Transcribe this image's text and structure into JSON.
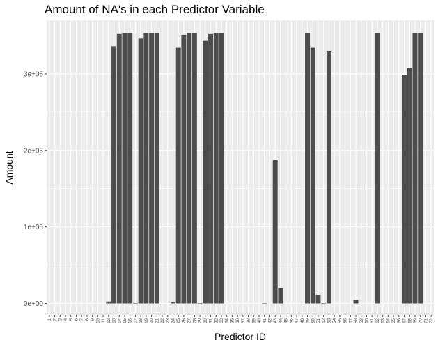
{
  "chart_data": {
    "type": "bar",
    "title": "Amount of NA's in each Predictor Variable",
    "xlabel": "Predictor ID",
    "ylabel": "Amount",
    "ylim": [
      -15000,
      370000
    ],
    "y_ticks": [
      0,
      100000,
      200000,
      300000
    ],
    "y_tick_labels": [
      "0e+00",
      "1e+05",
      "2e+05",
      "3e+05"
    ],
    "grid": true,
    "bar_color": "#4d4d4d",
    "panel_color": "#ebebeb",
    "grid_color": "#ffffff",
    "categories": [
      "1",
      "2",
      "3",
      "4",
      "5",
      "6",
      "7",
      "8",
      "9",
      "10",
      "11",
      "12",
      "13",
      "14",
      "15",
      "16",
      "17",
      "18",
      "19",
      "20",
      "21",
      "22",
      "23",
      "24",
      "25",
      "26",
      "27",
      "28",
      "29",
      "30",
      "31",
      "32",
      "33",
      "34",
      "35",
      "36",
      "37",
      "38",
      "39",
      "40",
      "41",
      "42",
      "43",
      "44",
      "45",
      "46",
      "47",
      "48",
      "49",
      "50",
      "51",
      "52",
      "53",
      "54",
      "55",
      "56",
      "57",
      "58",
      "59",
      "60",
      "61",
      "62",
      "63",
      "64",
      "65",
      "66",
      "67",
      "68",
      "69",
      "70",
      "71",
      "72"
    ],
    "values": [
      0,
      0,
      0,
      0,
      0,
      0,
      0,
      0,
      0,
      0,
      0,
      2500,
      336000,
      352000,
      353000,
      353000,
      500,
      346000,
      353000,
      353000,
      353000,
      0,
      0,
      1500,
      334000,
      351000,
      353000,
      353000,
      500,
      343000,
      352000,
      353000,
      353000,
      0,
      0,
      0,
      0,
      0,
      0,
      0,
      500,
      0,
      187000,
      20000,
      0,
      0,
      0,
      0,
      353000,
      334000,
      11500,
      500,
      330000,
      0,
      0,
      0,
      0,
      4500,
      0,
      0,
      0,
      353000,
      0,
      0,
      0,
      0,
      299000,
      308000,
      353000,
      353000,
      0,
      0
    ]
  }
}
